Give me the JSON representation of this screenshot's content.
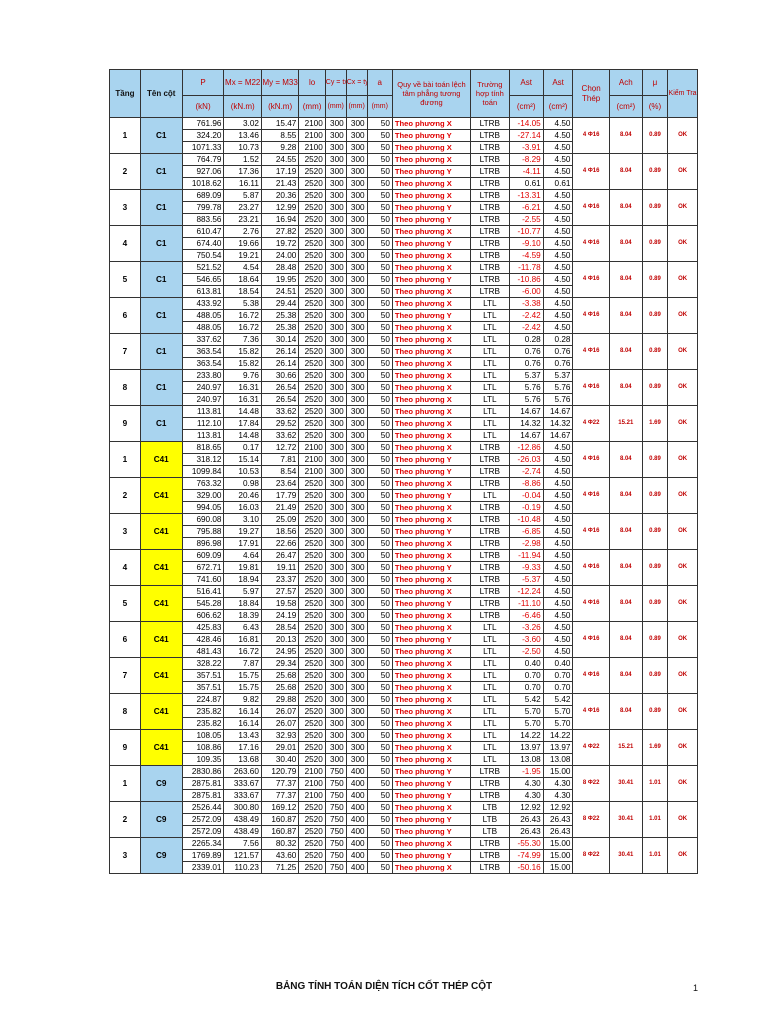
{
  "header": {
    "tang": "Tầng",
    "ten_cot": "Tên cột",
    "p": "P",
    "p_unit": "(kN)",
    "mx": "Mx = M22",
    "mx_unit": "(kN.m)",
    "my": "My = M33",
    "my_unit": "(kN.m)",
    "lo": "lo",
    "lo_unit": "(mm)",
    "cy": "Cy = tx",
    "cy_unit": "(mm)",
    "cx": "Cx = ty",
    "cx_unit": "(mm)",
    "a": "a",
    "a_unit": "(mm)",
    "quy_ve": "Quy về bài toán lệch tâm phẳng tương đương",
    "truong_hop": "Trường hợp tính toán",
    "ast": "Ast",
    "ast_unit": "(cm²)",
    "asc": "Ast",
    "asc_unit": "(cm²)",
    "chon_thep": "Chọn Thép",
    "ach": "Ach",
    "ach_unit": "(cm²)",
    "mu": "μ",
    "mu_unit": "(%)",
    "kiem_tra": "Kiểm Tra"
  },
  "groups": [
    {
      "tang": "1",
      "col": "C1",
      "color": "blue",
      "chon": "4 Φ16",
      "ach": "8.04",
      "mu": "0.89",
      "kt": "OK",
      "rows": [
        [
          "761.96",
          "3.02",
          "15.47",
          "2100",
          "300",
          "300",
          "50",
          "Theo phương X",
          "LTRB",
          "-14.05",
          "4.50"
        ],
        [
          "324.20",
          "13.46",
          "8.55",
          "2100",
          "300",
          "300",
          "50",
          "Theo phương Y",
          "LTRB",
          "-27.14",
          "4.50"
        ],
        [
          "1071.33",
          "10.73",
          "9.28",
          "2100",
          "300",
          "300",
          "50",
          "Theo phương X",
          "LTRB",
          "-3.91",
          "4.50"
        ]
      ]
    },
    {
      "tang": "2",
      "col": "C1",
      "color": "blue",
      "chon": "4 Φ16",
      "ach": "8.04",
      "mu": "0.89",
      "kt": "OK",
      "rows": [
        [
          "764.79",
          "1.52",
          "24.55",
          "2520",
          "300",
          "300",
          "50",
          "Theo phương X",
          "LTRB",
          "-8.29",
          "4.50"
        ],
        [
          "927.06",
          "17.36",
          "17.19",
          "2520",
          "300",
          "300",
          "50",
          "Theo phương Y",
          "LTRB",
          "-4.11",
          "4.50"
        ],
        [
          "1018.62",
          "16.11",
          "21.43",
          "2520",
          "300",
          "300",
          "50",
          "Theo phương X",
          "LTRB",
          "0.61",
          "0.61"
        ]
      ]
    },
    {
      "tang": "3",
      "col": "C1",
      "color": "blue",
      "chon": "4 Φ16",
      "ach": "8.04",
      "mu": "0.89",
      "kt": "OK",
      "rows": [
        [
          "689.09",
          "5.87",
          "20.36",
          "2520",
          "300",
          "300",
          "50",
          "Theo phương X",
          "LTRB",
          "-13.31",
          "4.50"
        ],
        [
          "799.78",
          "23.27",
          "12.99",
          "2520",
          "300",
          "300",
          "50",
          "Theo phương Y",
          "LTRB",
          "-6.21",
          "4.50"
        ],
        [
          "883.56",
          "23.21",
          "16.94",
          "2520",
          "300",
          "300",
          "50",
          "Theo phương Y",
          "LTRB",
          "-2.55",
          "4.50"
        ]
      ]
    },
    {
      "tang": "4",
      "col": "C1",
      "color": "blue",
      "chon": "4 Φ16",
      "ach": "8.04",
      "mu": "0.89",
      "kt": "OK",
      "rows": [
        [
          "610.47",
          "2.76",
          "27.82",
          "2520",
          "300",
          "300",
          "50",
          "Theo phương X",
          "LTRB",
          "-10.77",
          "4.50"
        ],
        [
          "674.40",
          "19.66",
          "19.72",
          "2520",
          "300",
          "300",
          "50",
          "Theo phương Y",
          "LTRB",
          "-9.10",
          "4.50"
        ],
        [
          "750.54",
          "19.21",
          "24.00",
          "2520",
          "300",
          "300",
          "50",
          "Theo phương X",
          "LTRB",
          "-4.59",
          "4.50"
        ]
      ]
    },
    {
      "tang": "5",
      "col": "C1",
      "color": "blue",
      "chon": "4 Φ16",
      "ach": "8.04",
      "mu": "0.89",
      "kt": "OK",
      "rows": [
        [
          "521.52",
          "4.54",
          "28.48",
          "2520",
          "300",
          "300",
          "50",
          "Theo phương X",
          "LTRB",
          "-11.78",
          "4.50"
        ],
        [
          "546.65",
          "18.64",
          "19.95",
          "2520",
          "300",
          "300",
          "50",
          "Theo phương Y",
          "LTRB",
          "-10.86",
          "4.50"
        ],
        [
          "613.81",
          "18.54",
          "24.51",
          "2520",
          "300",
          "300",
          "50",
          "Theo phương X",
          "LTRB",
          "-6.00",
          "4.50"
        ]
      ]
    },
    {
      "tang": "6",
      "col": "C1",
      "color": "blue",
      "chon": "4 Φ16",
      "ach": "8.04",
      "mu": "0.89",
      "kt": "OK",
      "rows": [
        [
          "433.92",
          "5.38",
          "29.44",
          "2520",
          "300",
          "300",
          "50",
          "Theo phương X",
          "LTL",
          "-3.38",
          "4.50"
        ],
        [
          "488.05",
          "16.72",
          "25.38",
          "2520",
          "300",
          "300",
          "50",
          "Theo phương Y",
          "LTL",
          "-2.42",
          "4.50"
        ],
        [
          "488.05",
          "16.72",
          "25.38",
          "2520",
          "300",
          "300",
          "50",
          "Theo phương X",
          "LTL",
          "-2.42",
          "4.50"
        ]
      ]
    },
    {
      "tang": "7",
      "col": "C1",
      "color": "blue",
      "chon": "4 Φ16",
      "ach": "8.04",
      "mu": "0.89",
      "kt": "OK",
      "rows": [
        [
          "337.62",
          "7.36",
          "30.14",
          "2520",
          "300",
          "300",
          "50",
          "Theo phương X",
          "LTL",
          "0.28",
          "0.28"
        ],
        [
          "363.54",
          "15.82",
          "26.14",
          "2520",
          "300",
          "300",
          "50",
          "Theo phương X",
          "LTL",
          "0.76",
          "0.76"
        ],
        [
          "363.54",
          "15.82",
          "26.14",
          "2520",
          "300",
          "300",
          "50",
          "Theo phương X",
          "LTL",
          "0.76",
          "0.76"
        ]
      ]
    },
    {
      "tang": "8",
      "col": "C1",
      "color": "blue",
      "chon": "4 Φ16",
      "ach": "8.04",
      "mu": "0.89",
      "kt": "OK",
      "rows": [
        [
          "233.80",
          "9.76",
          "30.66",
          "2520",
          "300",
          "300",
          "50",
          "Theo phương X",
          "LTL",
          "5.37",
          "5.37"
        ],
        [
          "240.97",
          "16.31",
          "26.54",
          "2520",
          "300",
          "300",
          "50",
          "Theo phương X",
          "LTL",
          "5.76",
          "5.76"
        ],
        [
          "240.97",
          "16.31",
          "26.54",
          "2520",
          "300",
          "300",
          "50",
          "Theo phương X",
          "LTL",
          "5.76",
          "5.76"
        ]
      ]
    },
    {
      "tang": "9",
      "col": "C1",
      "color": "blue",
      "chon": "4 Φ22",
      "ach": "15.21",
      "mu": "1.69",
      "kt": "OK",
      "rows": [
        [
          "113.81",
          "14.48",
          "33.62",
          "2520",
          "300",
          "300",
          "50",
          "Theo phương X",
          "LTL",
          "14.67",
          "14.67"
        ],
        [
          "112.10",
          "17.84",
          "29.52",
          "2520",
          "300",
          "300",
          "50",
          "Theo phương X",
          "LTL",
          "14.32",
          "14.32"
        ],
        [
          "113.81",
          "14.48",
          "33.62",
          "2520",
          "300",
          "300",
          "50",
          "Theo phương X",
          "LTL",
          "14.67",
          "14.67"
        ]
      ]
    },
    {
      "tang": "1",
      "col": "C41",
      "color": "yellow",
      "chon": "4 Φ16",
      "ach": "8.04",
      "mu": "0.89",
      "kt": "OK",
      "rows": [
        [
          "818.65",
          "0.17",
          "12.72",
          "2100",
          "300",
          "300",
          "50",
          "Theo phương X",
          "LTRB",
          "-12.86",
          "4.50"
        ],
        [
          "318.12",
          "15.14",
          "7.81",
          "2100",
          "300",
          "300",
          "50",
          "Theo phương Y",
          "LTRB",
          "-26.03",
          "4.50"
        ],
        [
          "1099.84",
          "10.53",
          "8.54",
          "2100",
          "300",
          "300",
          "50",
          "Theo phương Y",
          "LTRB",
          "-2.74",
          "4.50"
        ]
      ]
    },
    {
      "tang": "2",
      "col": "C41",
      "color": "yellow",
      "chon": "4 Φ16",
      "ach": "8.04",
      "mu": "0.89",
      "kt": "OK",
      "rows": [
        [
          "763.32",
          "0.98",
          "23.64",
          "2520",
          "300",
          "300",
          "50",
          "Theo phương X",
          "LTRB",
          "-8.86",
          "4.50"
        ],
        [
          "329.00",
          "20.46",
          "17.79",
          "2520",
          "300",
          "300",
          "50",
          "Theo phương Y",
          "LTL",
          "-0.04",
          "4.50"
        ],
        [
          "994.05",
          "16.03",
          "21.49",
          "2520",
          "300",
          "300",
          "50",
          "Theo phương X",
          "LTRB",
          "-0.19",
          "4.50"
        ]
      ]
    },
    {
      "tang": "3",
      "col": "C41",
      "color": "yellow",
      "chon": "4 Φ16",
      "ach": "8.04",
      "mu": "0.89",
      "kt": "OK",
      "rows": [
        [
          "690.08",
          "3.10",
          "25.09",
          "2520",
          "300",
          "300",
          "50",
          "Theo phương X",
          "LTRB",
          "-10.48",
          "4.50"
        ],
        [
          "795.88",
          "19.27",
          "18.56",
          "2520",
          "300",
          "300",
          "50",
          "Theo phương Y",
          "LTRB",
          "-6.85",
          "4.50"
        ],
        [
          "896.98",
          "17.91",
          "22.66",
          "2520",
          "300",
          "300",
          "50",
          "Theo phương X",
          "LTRB",
          "-2.98",
          "4.50"
        ]
      ]
    },
    {
      "tang": "4",
      "col": "C41",
      "color": "yellow",
      "chon": "4 Φ16",
      "ach": "8.04",
      "mu": "0.89",
      "kt": "OK",
      "rows": [
        [
          "609.09",
          "4.64",
          "26.47",
          "2520",
          "300",
          "300",
          "50",
          "Theo phương X",
          "LTRB",
          "-11.94",
          "4.50"
        ],
        [
          "672.71",
          "19.81",
          "19.11",
          "2520",
          "300",
          "300",
          "50",
          "Theo phương Y",
          "LTRB",
          "-9.33",
          "4.50"
        ],
        [
          "741.60",
          "18.94",
          "23.37",
          "2520",
          "300",
          "300",
          "50",
          "Theo phương X",
          "LTRB",
          "-5.37",
          "4.50"
        ]
      ]
    },
    {
      "tang": "5",
      "col": "C41",
      "color": "yellow",
      "chon": "4 Φ16",
      "ach": "8.04",
      "mu": "0.89",
      "kt": "OK",
      "rows": [
        [
          "516.41",
          "5.97",
          "27.57",
          "2520",
          "300",
          "300",
          "50",
          "Theo phương X",
          "LTRB",
          "-12.24",
          "4.50"
        ],
        [
          "545.28",
          "18.84",
          "19.58",
          "2520",
          "300",
          "300",
          "50",
          "Theo phương Y",
          "LTRB",
          "-11.10",
          "4.50"
        ],
        [
          "606.62",
          "18.39",
          "24.19",
          "2520",
          "300",
          "300",
          "50",
          "Theo phương X",
          "LTRB",
          "-6.46",
          "4.50"
        ]
      ]
    },
    {
      "tang": "6",
      "col": "C41",
      "color": "yellow",
      "chon": "4 Φ16",
      "ach": "8.04",
      "mu": "0.89",
      "kt": "OK",
      "rows": [
        [
          "425.83",
          "6.43",
          "28.54",
          "2520",
          "300",
          "300",
          "50",
          "Theo phương X",
          "LTL",
          "-3.26",
          "4.50"
        ],
        [
          "428.46",
          "16.81",
          "20.13",
          "2520",
          "300",
          "300",
          "50",
          "Theo phương Y",
          "LTL",
          "-3.60",
          "4.50"
        ],
        [
          "481.43",
          "16.72",
          "24.95",
          "2520",
          "300",
          "300",
          "50",
          "Theo phương X",
          "LTL",
          "-2.50",
          "4.50"
        ]
      ]
    },
    {
      "tang": "7",
      "col": "C41",
      "color": "yellow",
      "chon": "4 Φ16",
      "ach": "8.04",
      "mu": "0.89",
      "kt": "OK",
      "rows": [
        [
          "328.22",
          "7.87",
          "29.34",
          "2520",
          "300",
          "300",
          "50",
          "Theo phương X",
          "LTL",
          "0.40",
          "0.40"
        ],
        [
          "357.51",
          "15.75",
          "25.68",
          "2520",
          "300",
          "300",
          "50",
          "Theo phương X",
          "LTL",
          "0.70",
          "0.70"
        ],
        [
          "357.51",
          "15.75",
          "25.68",
          "2520",
          "300",
          "300",
          "50",
          "Theo phương X",
          "LTL",
          "0.70",
          "0.70"
        ]
      ]
    },
    {
      "tang": "8",
      "col": "C41",
      "color": "yellow",
      "chon": "4 Φ16",
      "ach": "8.04",
      "mu": "0.89",
      "kt": "OK",
      "rows": [
        [
          "224.87",
          "9.82",
          "29.88",
          "2520",
          "300",
          "300",
          "50",
          "Theo phương X",
          "LTL",
          "5.42",
          "5.42"
        ],
        [
          "235.82",
          "16.14",
          "26.07",
          "2520",
          "300",
          "300",
          "50",
          "Theo phương X",
          "LTL",
          "5.70",
          "5.70"
        ],
        [
          "235.82",
          "16.14",
          "26.07",
          "2520",
          "300",
          "300",
          "50",
          "Theo phương X",
          "LTL",
          "5.70",
          "5.70"
        ]
      ]
    },
    {
      "tang": "9",
      "col": "C41",
      "color": "yellow",
      "chon": "4 Φ22",
      "ach": "15.21",
      "mu": "1.69",
      "kt": "OK",
      "rows": [
        [
          "108.05",
          "13.43",
          "32.93",
          "2520",
          "300",
          "300",
          "50",
          "Theo phương X",
          "LTL",
          "14.22",
          "14.22"
        ],
        [
          "108.86",
          "17.16",
          "29.01",
          "2520",
          "300",
          "300",
          "50",
          "Theo phương X",
          "LTL",
          "13.97",
          "13.97"
        ],
        [
          "109.35",
          "13.68",
          "30.40",
          "2520",
          "300",
          "300",
          "50",
          "Theo phương X",
          "LTL",
          "13.08",
          "13.08"
        ]
      ]
    },
    {
      "tang": "1",
      "col": "C9",
      "color": "blue",
      "chon": "8 Φ22",
      "ach": "30.41",
      "mu": "1.01",
      "kt": "OK",
      "rows": [
        [
          "2830.86",
          "263.60",
          "120.79",
          "2100",
          "750",
          "400",
          "50",
          "Theo phương Y",
          "LTRB",
          "-1.95",
          "15.00"
        ],
        [
          "2875.81",
          "333.67",
          "77.37",
          "2100",
          "750",
          "400",
          "50",
          "Theo phương Y",
          "LTRB",
          "4.30",
          "4.30"
        ],
        [
          "2875.81",
          "333.67",
          "77.37",
          "2100",
          "750",
          "400",
          "50",
          "Theo phương Y",
          "LTRB",
          "4.30",
          "4.30"
        ]
      ]
    },
    {
      "tang": "2",
      "col": "C9",
      "color": "blue",
      "chon": "8 Φ22",
      "ach": "30.41",
      "mu": "1.01",
      "kt": "OK",
      "rows": [
        [
          "2526.44",
          "300.80",
          "169.12",
          "2520",
          "750",
          "400",
          "50",
          "Theo phương X",
          "LTB",
          "12.92",
          "12.92"
        ],
        [
          "2572.09",
          "438.49",
          "160.87",
          "2520",
          "750",
          "400",
          "50",
          "Theo phương Y",
          "LTB",
          "26.43",
          "26.43"
        ],
        [
          "2572.09",
          "438.49",
          "160.87",
          "2520",
          "750",
          "400",
          "50",
          "Theo phương Y",
          "LTB",
          "26.43",
          "26.43"
        ]
      ]
    },
    {
      "tang": "3",
      "col": "C9",
      "color": "blue",
      "chon": "8 Φ22",
      "ach": "30.41",
      "mu": "1.01",
      "kt": "OK",
      "rows": [
        [
          "2265.34",
          "7.56",
          "80.32",
          "2520",
          "750",
          "400",
          "50",
          "Theo phương X",
          "LTRB",
          "-55.30",
          "15.00"
        ],
        [
          "1769.89",
          "121.57",
          "43.60",
          "2520",
          "750",
          "400",
          "50",
          "Theo phương Y",
          "LTRB",
          "-74.99",
          "15.00"
        ],
        [
          "2339.01",
          "110.23",
          "71.25",
          "2520",
          "750",
          "400",
          "50",
          "Theo phương X",
          "LTRB",
          "-50.16",
          "15.00"
        ]
      ]
    }
  ],
  "footer": {
    "title": "BẢNG TÍNH TOÁN DIỆN TÍCH CỐT THÉP CỘT",
    "page": "1"
  }
}
